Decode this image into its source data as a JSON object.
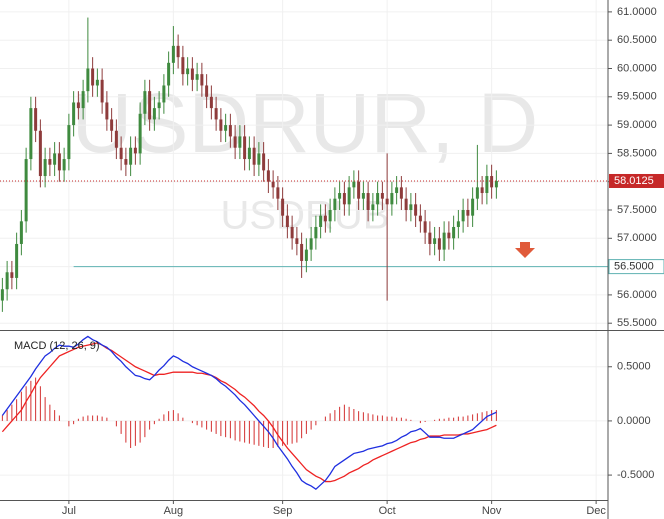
{
  "chart_data": [
    {
      "type": "candlestick",
      "title": "USDRUR, D",
      "subtitle": "USDRUB",
      "x": [
        0,
        1,
        2,
        3,
        4,
        5,
        6,
        7,
        8,
        9,
        10,
        11,
        12,
        13,
        14,
        15,
        16,
        17,
        18,
        19,
        20,
        21,
        22,
        23,
        24,
        25,
        26,
        27,
        28,
        29,
        30,
        31,
        32,
        33,
        34,
        35,
        36,
        37,
        38,
        39,
        40,
        41,
        42,
        43,
        44,
        45,
        46,
        47,
        48,
        49,
        50,
        51,
        52,
        53,
        54,
        55,
        56,
        57,
        58,
        59,
        60,
        61,
        62,
        63,
        64,
        65,
        66,
        67,
        68,
        69,
        70,
        71,
        72,
        73,
        74,
        75,
        76,
        77,
        78,
        79,
        80,
        81,
        82,
        83,
        84,
        85,
        86,
        87,
        88,
        89,
        90,
        91,
        92,
        93,
        94,
        95,
        96,
        97,
        98,
        99,
        100,
        101,
        102,
        103,
        104
      ],
      "open": [
        55.9,
        56.1,
        56.4,
        56.3,
        56.9,
        57.3,
        58.4,
        59.3,
        58.9,
        58.1,
        58.4,
        58.3,
        58.5,
        58.2,
        58.4,
        59.0,
        59.4,
        59.3,
        59.6,
        60.0,
        59.7,
        59.8,
        59.4,
        59.1,
        58.9,
        58.6,
        58.4,
        58.3,
        58.6,
        58.5,
        59.2,
        59.6,
        59.1,
        59.3,
        59.4,
        59.7,
        60.1,
        60.4,
        60.2,
        59.9,
        60.0,
        59.8,
        59.9,
        59.7,
        59.5,
        59.3,
        59.1,
        58.9,
        59.0,
        58.8,
        58.6,
        58.8,
        58.4,
        58.6,
        58.3,
        58.5,
        58.2,
        58.0,
        57.9,
        57.7,
        57.4,
        57.2,
        57.0,
        56.9,
        56.6,
        56.8,
        57.0,
        57.2,
        57.4,
        57.3,
        57.5,
        57.7,
        57.8,
        57.6,
        57.9,
        58.0,
        57.7,
        57.8,
        57.5,
        57.6,
        57.8,
        57.7,
        57.6,
        57.8,
        57.9,
        57.7,
        57.5,
        57.6,
        57.4,
        57.3,
        57.1,
        56.9,
        57.0,
        56.8,
        57.1,
        57.0,
        57.2,
        57.3,
        57.5,
        57.4,
        57.7,
        57.9,
        57.8,
        58.1,
        57.9
      ],
      "high": [
        56.3,
        56.6,
        56.6,
        57.1,
        57.5,
        58.6,
        59.5,
        59.5,
        59.1,
        58.6,
        58.6,
        58.7,
        58.7,
        58.6,
        59.2,
        59.6,
        59.6,
        59.8,
        60.9,
        60.2,
        60.0,
        60.0,
        59.6,
        59.3,
        59.1,
        58.8,
        58.6,
        58.8,
        58.8,
        59.4,
        59.8,
        59.8,
        59.5,
        59.6,
        59.9,
        60.3,
        60.75,
        60.6,
        60.4,
        60.2,
        60.2,
        60.1,
        60.1,
        59.9,
        59.7,
        59.5,
        59.3,
        59.2,
        59.2,
        59.0,
        59.0,
        59.0,
        58.8,
        58.8,
        58.7,
        58.7,
        58.4,
        58.2,
        58.1,
        57.9,
        57.6,
        57.4,
        57.2,
        57.1,
        57.0,
        57.2,
        57.4,
        57.6,
        57.6,
        57.7,
        57.9,
        58.0,
        58.0,
        58.1,
        58.2,
        58.2,
        58.0,
        58.0,
        57.8,
        58.0,
        58.0,
        58.5,
        58.0,
        58.1,
        58.1,
        57.9,
        57.8,
        57.8,
        57.6,
        57.5,
        57.3,
        57.2,
        57.2,
        57.3,
        57.3,
        57.4,
        57.5,
        57.7,
        57.7,
        57.9,
        58.65,
        58.1,
        58.3,
        58.3,
        58.2
      ],
      "low": [
        55.7,
        55.9,
        56.1,
        56.1,
        56.7,
        57.1,
        58.2,
        58.7,
        57.9,
        57.9,
        58.1,
        58.1,
        58.0,
        58.0,
        58.2,
        58.8,
        59.1,
        59.1,
        59.4,
        59.5,
        59.5,
        59.2,
        58.9,
        58.7,
        58.4,
        58.2,
        58.1,
        58.1,
        58.3,
        58.3,
        59.0,
        58.9,
        58.9,
        59.1,
        59.2,
        59.5,
        59.9,
        60.0,
        59.7,
        59.7,
        59.6,
        59.6,
        59.5,
        59.3,
        59.1,
        58.9,
        58.7,
        58.7,
        58.6,
        58.4,
        58.4,
        58.2,
        58.2,
        58.1,
        58.1,
        58.0,
        57.8,
        57.7,
        57.5,
        57.2,
        57.0,
        56.8,
        56.7,
        56.3,
        56.4,
        56.6,
        56.8,
        57.0,
        57.1,
        57.1,
        57.3,
        57.5,
        57.4,
        57.4,
        57.7,
        57.5,
        57.5,
        57.3,
        57.3,
        57.4,
        57.5,
        55.9,
        57.4,
        57.6,
        57.5,
        57.3,
        57.3,
        57.2,
        57.1,
        56.9,
        56.7,
        56.7,
        56.6,
        56.6,
        56.8,
        56.8,
        57.0,
        57.1,
        57.2,
        57.2,
        57.5,
        57.6,
        57.6,
        57.7,
        57.7
      ],
      "close": [
        56.1,
        56.4,
        56.3,
        56.9,
        57.3,
        58.4,
        59.3,
        58.9,
        58.1,
        58.4,
        58.3,
        58.5,
        58.2,
        58.4,
        59.0,
        59.4,
        59.3,
        59.6,
        60.0,
        59.7,
        59.8,
        59.4,
        59.1,
        58.9,
        58.6,
        58.4,
        58.3,
        58.6,
        58.5,
        59.2,
        59.6,
        59.1,
        59.3,
        59.4,
        59.7,
        60.1,
        60.4,
        60.2,
        59.9,
        60.0,
        59.8,
        59.9,
        59.7,
        59.5,
        59.3,
        59.1,
        58.9,
        59.0,
        58.8,
        58.6,
        58.8,
        58.4,
        58.6,
        58.3,
        58.5,
        58.2,
        58.0,
        57.9,
        57.7,
        57.4,
        57.2,
        57.0,
        56.9,
        56.6,
        56.8,
        57.0,
        57.2,
        57.4,
        57.3,
        57.5,
        57.7,
        57.8,
        57.6,
        57.9,
        58.0,
        57.7,
        57.8,
        57.5,
        57.6,
        57.8,
        57.7,
        57.6,
        57.8,
        57.9,
        57.7,
        57.5,
        57.6,
        57.4,
        57.3,
        57.1,
        56.9,
        57.0,
        56.8,
        57.1,
        57.0,
        57.2,
        57.3,
        57.5,
        57.4,
        57.7,
        57.9,
        57.8,
        58.1,
        57.9,
        58.0125
      ],
      "up_color": "#3f8a3f",
      "down_color": "#8e3b3b",
      "xlim": [
        -0.5,
        127.5
      ],
      "ylim": [
        55.38,
        61.21
      ],
      "yticks": [
        {
          "value": 55.5,
          "label": "55.5000"
        },
        {
          "value": 56,
          "label": "56.0000"
        },
        {
          "value": 56.5,
          "label": "56.5000"
        },
        {
          "value": 57,
          "label": "57.0000"
        },
        {
          "value": 57.5,
          "label": "57.5000"
        },
        {
          "value": 58,
          "label": "58.0000"
        },
        {
          "value": 58.5,
          "label": "58.5000"
        },
        {
          "value": 59,
          "label": "59.0000"
        },
        {
          "value": 59.5,
          "label": "59.5000"
        },
        {
          "value": 60,
          "label": "60.0000"
        },
        {
          "value": 60.5,
          "label": "60.5000"
        },
        {
          "value": 61,
          "label": "61.0000"
        }
      ],
      "last_price": {
        "value": 58.0125,
        "label": "58.0125",
        "color": "#c62828"
      },
      "level": {
        "value": 56.5,
        "label": "56.5000",
        "color": "#5fb3b3"
      },
      "grid": true
    },
    {
      "type": "macd",
      "title": "MACD (12, 26, 9)",
      "x": [
        0,
        1,
        2,
        3,
        4,
        5,
        6,
        7,
        8,
        9,
        10,
        11,
        12,
        13,
        14,
        15,
        16,
        17,
        18,
        19,
        20,
        21,
        22,
        23,
        24,
        25,
        26,
        27,
        28,
        29,
        30,
        31,
        32,
        33,
        34,
        35,
        36,
        37,
        38,
        39,
        40,
        41,
        42,
        43,
        44,
        45,
        46,
        47,
        48,
        49,
        50,
        51,
        52,
        53,
        54,
        55,
        56,
        57,
        58,
        59,
        60,
        61,
        62,
        63,
        64,
        65,
        66,
        67,
        68,
        69,
        70,
        71,
        72,
        73,
        74,
        75,
        76,
        77,
        78,
        79,
        80,
        81,
        82,
        83,
        84,
        85,
        86,
        87,
        88,
        89,
        90,
        91,
        92,
        93,
        94,
        95,
        96,
        97,
        98,
        99,
        100,
        101,
        102,
        103,
        104
      ],
      "macd": {
        "color": "#1f2fe0",
        "values": [
          0.05,
          0.11,
          0.17,
          0.23,
          0.29,
          0.35,
          0.41,
          0.48,
          0.54,
          0.6,
          0.63,
          0.67,
          0.7,
          0.69,
          0.69,
          0.68,
          0.71,
          0.75,
          0.78,
          0.75,
          0.73,
          0.7,
          0.68,
          0.64,
          0.59,
          0.55,
          0.5,
          0.46,
          0.42,
          0.41,
          0.39,
          0.38,
          0.42,
          0.47,
          0.51,
          0.56,
          0.6,
          0.58,
          0.55,
          0.53,
          0.5,
          0.48,
          0.46,
          0.44,
          0.42,
          0.39,
          0.35,
          0.32,
          0.28,
          0.24,
          0.19,
          0.15,
          0.1,
          0.05,
          0,
          -0.05,
          -0.1,
          -0.16,
          -0.23,
          -0.29,
          -0.35,
          -0.42,
          -0.48,
          -0.55,
          -0.58,
          -0.6,
          -0.63,
          -0.59,
          -0.55,
          -0.49,
          -0.42,
          -0.39,
          -0.36,
          -0.33,
          -0.3,
          -0.29,
          -0.28,
          -0.26,
          -0.25,
          -0.24,
          -0.23,
          -0.21,
          -0.2,
          -0.18,
          -0.15,
          -0.13,
          -0.1,
          -0.09,
          -0.07,
          -0.11,
          -0.15,
          -0.15,
          -0.15,
          -0.16,
          -0.16,
          -0.16,
          -0.14,
          -0.12,
          -0.1,
          -0.08,
          -0.04,
          0,
          0.04,
          0.06,
          0.08
        ]
      },
      "signal": {
        "color": "#ee2222",
        "values": [
          -0.1,
          -0.05,
          0,
          0.05,
          0.1,
          0.18,
          0.25,
          0.33,
          0.4,
          0.45,
          0.5,
          0.55,
          0.6,
          0.62,
          0.64,
          0.66,
          0.68,
          0.69,
          0.7,
          0.71,
          0.72,
          0.7,
          0.67,
          0.65,
          0.62,
          0.59,
          0.56,
          0.53,
          0.5,
          0.48,
          0.46,
          0.44,
          0.42,
          0.43,
          0.43,
          0.44,
          0.45,
          0.45,
          0.45,
          0.45,
          0.45,
          0.44,
          0.44,
          0.43,
          0.42,
          0.4,
          0.37,
          0.35,
          0.32,
          0.29,
          0.25,
          0.22,
          0.18,
          0.14,
          0.09,
          0.05,
          0,
          -0.06,
          -0.13,
          -0.19,
          -0.25,
          -0.3,
          -0.35,
          -0.4,
          -0.45,
          -0.48,
          -0.51,
          -0.53,
          -0.56,
          -0.56,
          -0.55,
          -0.53,
          -0.51,
          -0.48,
          -0.46,
          -0.44,
          -0.41,
          -0.39,
          -0.36,
          -0.34,
          -0.32,
          -0.3,
          -0.28,
          -0.26,
          -0.24,
          -0.22,
          -0.2,
          -0.19,
          -0.17,
          -0.16,
          -0.14,
          -0.14,
          -0.14,
          -0.13,
          -0.13,
          -0.13,
          -0.13,
          -0.12,
          -0.12,
          -0.11,
          -0.1,
          -0.09,
          -0.08,
          -0.06,
          -0.04
        ]
      },
      "histogram": {
        "color": "#d32f2f",
        "values": [
          0.05,
          0.1,
          0.15,
          0.2,
          0.27,
          0.32,
          0.37,
          0.4,
          0.32,
          0.22,
          0.15,
          0.1,
          0.05,
          0,
          -0.05,
          -0.03,
          0.02,
          0.04,
          0.05,
          0.05,
          0.05,
          0.04,
          0.03,
          0,
          -0.05,
          -0.12,
          -0.2,
          -0.25,
          -0.23,
          -0.2,
          -0.15,
          -0.08,
          -0.03,
          0.02,
          0.06,
          0.09,
          0.1,
          0.07,
          0.03,
          0,
          -0.02,
          -0.04,
          -0.06,
          -0.08,
          -0.1,
          -0.12,
          -0.14,
          -0.15,
          -0.16,
          -0.18,
          -0.19,
          -0.2,
          -0.21,
          -0.22,
          -0.23,
          -0.24,
          -0.25,
          -0.25,
          -0.24,
          -0.23,
          -0.22,
          -0.21,
          -0.2,
          -0.16,
          -0.12,
          -0.08,
          -0.04,
          0,
          0.04,
          0.07,
          0.1,
          0.13,
          0.15,
          0.13,
          0.11,
          0.09,
          0.08,
          0.07,
          0.06,
          0.05,
          0.05,
          0.04,
          0.04,
          0.03,
          0.03,
          0.02,
          0.01,
          0,
          -0.02,
          -0.01,
          0,
          0.01,
          0.02,
          0.02,
          0.03,
          0.03,
          0.04,
          0.04,
          0.05,
          0.06,
          0.07,
          0.08,
          0.09,
          0.1,
          0.1
        ]
      },
      "xlim": [
        -0.5,
        127.5
      ],
      "ylim": [
        -0.73,
        0.83
      ],
      "xticks": [
        {
          "value": 14,
          "label": "Jul"
        },
        {
          "value": 36,
          "label": "Aug"
        },
        {
          "value": 59,
          "label": "Sep"
        },
        {
          "value": 81,
          "label": "Oct"
        },
        {
          "value": 103,
          "label": "Nov"
        },
        {
          "value": 125,
          "label": "Dec"
        }
      ],
      "yticks": [
        {
          "value": -0.5,
          "label": "-0.5000"
        },
        {
          "value": 0,
          "label": "0.0000"
        },
        {
          "value": 0.5,
          "label": "0.5000"
        }
      ],
      "grid": true
    }
  ]
}
